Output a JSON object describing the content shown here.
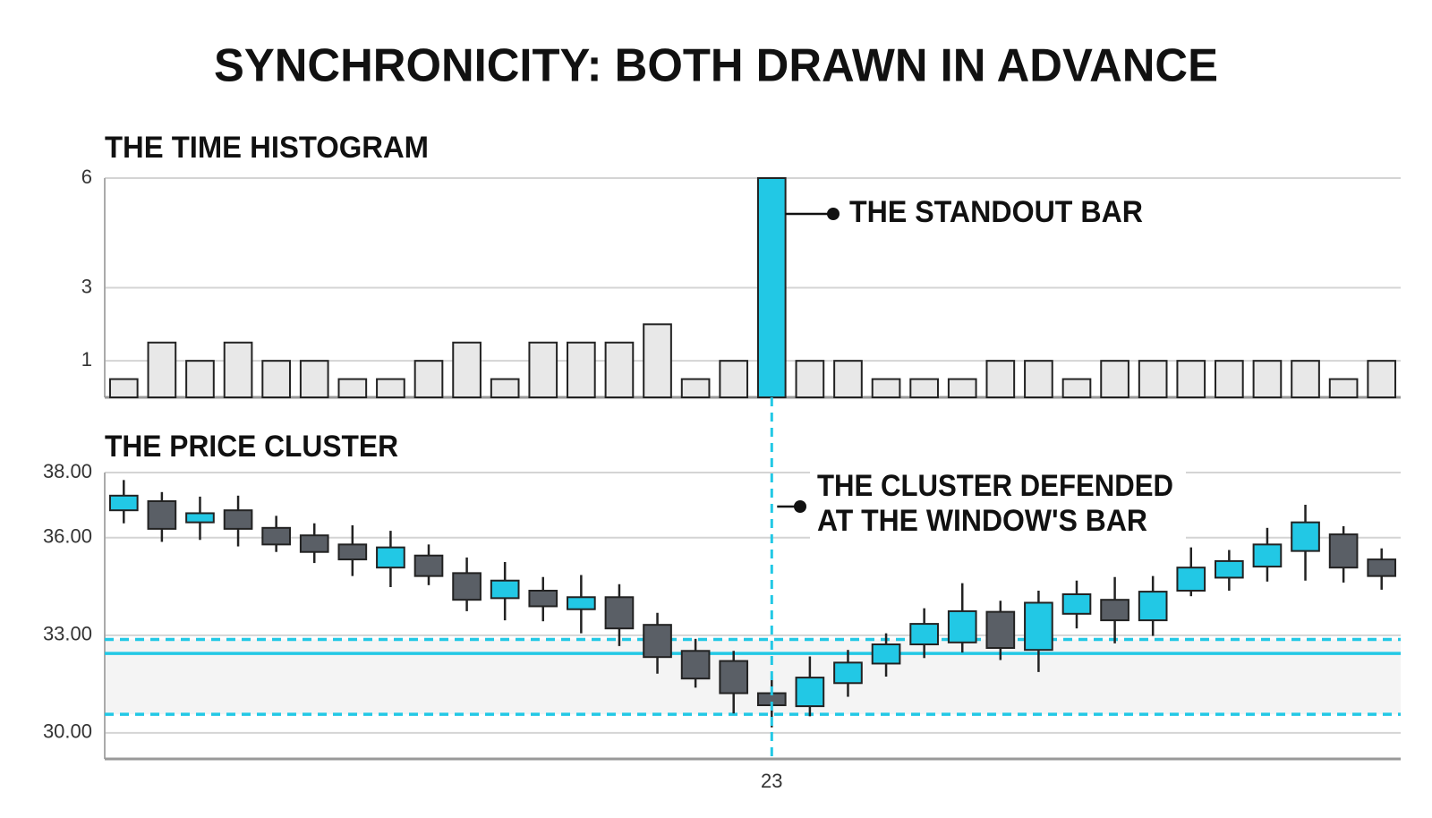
{
  "title": "SYNCHRONICITY: BOTH DRAWN IN ADVANCE",
  "chart_data": [
    {
      "type": "bar",
      "title": "THE TIME HISTOGRAM",
      "values": [
        0.5,
        1.5,
        1,
        1.5,
        1,
        1,
        0.5,
        0.5,
        1,
        1.5,
        0.5,
        1.5,
        1.5,
        1.5,
        2,
        0.5,
        1,
        6,
        1,
        1,
        0.5,
        0.5,
        0.5,
        1,
        1,
        0.5,
        1,
        1,
        1,
        1,
        1,
        1,
        0.5,
        1
      ],
      "colors": [
        "#e8e8e8",
        "#e8e8e8",
        "#e8e8e8",
        "#e8e8e8",
        "#e8e8e8",
        "#e8e8e8",
        "#e8e8e8",
        "#e8e8e8",
        "#e8e8e8",
        "#e8e8e8",
        "#e8e8e8",
        "#e8e8e8",
        "#e8e8e8",
        "#e8e8e8",
        "#e8e8e8",
        "#e8e8e8",
        "#e8e8e8",
        "#22c8e5",
        "#e8e8e8",
        "#e8e8e8",
        "#e8e8e8",
        "#e8e8e8",
        "#e8e8e8",
        "#e8e8e8",
        "#e8e8e8",
        "#e8e8e8",
        "#e8e8e8",
        "#e8e8e8",
        "#e8e8e8",
        "#e8e8e8",
        "#e8e8e8",
        "#e8e8e8",
        "#e8e8e8",
        "#e8e8e8"
      ],
      "ylim": [
        0,
        6
      ],
      "yticks": [
        1,
        3,
        6
      ],
      "grid": true,
      "annotation": "THE STANDOUT BAR"
    },
    {
      "type": "candlestick",
      "title": "THE PRICE CLUSTER",
      "categories": [
        null,
        null,
        null,
        null,
        null,
        null,
        null,
        null,
        null,
        null,
        null,
        null,
        null,
        null,
        null,
        null,
        null,
        "23",
        null,
        null,
        null,
        null,
        null,
        null,
        null,
        null,
        null,
        null,
        null,
        null,
        null,
        null,
        null,
        null
      ],
      "open": [
        36.84,
        37.12,
        36.47,
        36.84,
        36.3,
        36.07,
        35.79,
        35.08,
        35.45,
        34.91,
        34.14,
        34.37,
        33.8,
        34.17,
        33.32,
        32.52,
        32.21,
        31.22,
        30.82,
        31.53,
        32.13,
        32.72,
        32.78,
        33.72,
        32.55,
        33.66,
        34.09,
        33.46,
        34.37,
        34.77,
        35.11,
        35.59,
        36.1,
        35.33
      ],
      "high": [
        37.77,
        37.4,
        37.26,
        37.29,
        36.67,
        36.44,
        36.38,
        36.21,
        35.79,
        35.39,
        35.25,
        34.79,
        34.85,
        34.57,
        33.69,
        32.89,
        32.52,
        31.76,
        32.35,
        32.55,
        33.06,
        33.83,
        34.6,
        34.06,
        34.37,
        34.68,
        34.79,
        34.82,
        35.7,
        35.62,
        36.3,
        37.01,
        36.35,
        35.67
      ],
      "low": [
        36.44,
        35.87,
        35.93,
        35.73,
        35.56,
        35.22,
        34.82,
        34.48,
        34.54,
        33.74,
        33.46,
        33.43,
        33.06,
        32.67,
        31.82,
        31.39,
        30.6,
        30.17,
        30.51,
        31.11,
        31.73,
        32.3,
        32.47,
        32.24,
        31.87,
        33.21,
        32.75,
        32.98,
        34.2,
        34.37,
        34.65,
        34.68,
        34.62,
        34.4
      ],
      "close": [
        37.29,
        36.27,
        36.75,
        36.27,
        35.79,
        35.56,
        35.33,
        35.7,
        34.82,
        34.09,
        34.68,
        33.89,
        34.17,
        33.21,
        32.33,
        31.67,
        31.22,
        30.85,
        31.7,
        32.16,
        32.72,
        33.35,
        33.74,
        32.61,
        34.0,
        34.26,
        33.46,
        34.34,
        35.08,
        35.28,
        35.79,
        36.47,
        35.08,
        34.82
      ],
      "up_color": "#22c8e5",
      "down_color": "#5a5f66",
      "ylim": [
        29.2,
        38
      ],
      "yticks": [
        {
          "value": 38,
          "label": "38.00"
        },
        {
          "value": 36,
          "label": "36.00"
        },
        {
          "value": 33,
          "label": "33.00"
        },
        {
          "value": 30,
          "label": "30.00"
        }
      ],
      "grid": true,
      "levels": [
        {
          "value": 32.87,
          "style": "dashed"
        },
        {
          "value": 32.44,
          "style": "solid"
        },
        {
          "value": 30.57,
          "style": "dashed"
        }
      ],
      "level_color": "#22c8e5",
      "annotation": [
        "THE CLUSTER DEFENDED",
        "AT THE WINDOW'S BAR"
      ]
    }
  ]
}
